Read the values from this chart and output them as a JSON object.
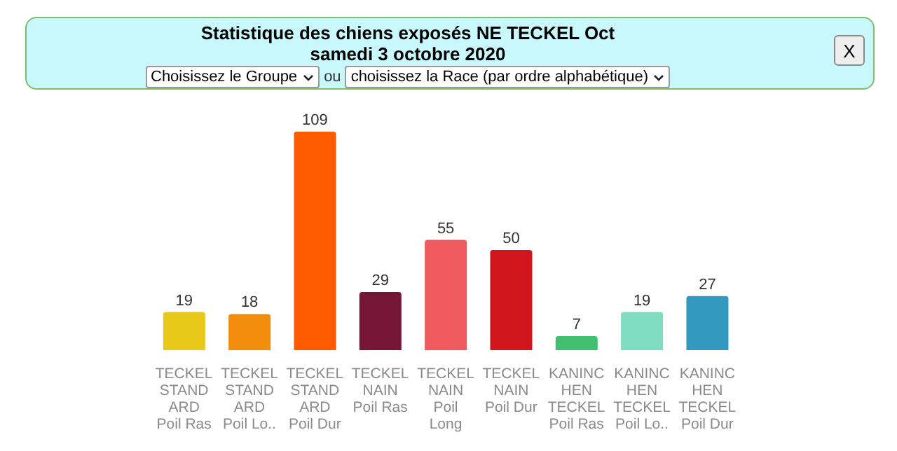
{
  "chart_data": {
    "type": "bar",
    "title": "Statistique des chiens exposés NE TECKEL Oct",
    "subtitle": "samedi 3 octobre 2020",
    "annotations": [
      "Choisissez le Groupe",
      "ou",
      "choisissez la Race (par ordre alphabétique)",
      "X"
    ],
    "categories": [
      "TECKEL\nSTAND\nARD\nPoil Ras",
      "TECKEL\nSTAND\nARD\nPoil Lo..",
      "TECKEL\nSTAND\nARD\nPoil Dur",
      "TECKEL\nNAIN\nPoil Ras",
      "TECKEL\nNAIN\nPoil\nLong",
      "TECKEL\nNAIN\nPoil Dur",
      "KANINC\nHEN\nTECKEL\nPoil Ras",
      "KANINC\nHEN\nTECKEL\nPoil Lo..",
      "KANINC\nHEN\nTECKEL\nPoil Dur"
    ],
    "values": [
      19,
      18,
      109,
      29,
      55,
      50,
      7,
      19,
      27
    ],
    "colors": [
      "#e8c81a",
      "#f28c0c",
      "#fe5a00",
      "#761636",
      "#ee5a5e",
      "#d0161c",
      "#3fbf6f",
      "#7fdcc0",
      "#3499bf"
    ],
    "data_labels": true
  }
}
